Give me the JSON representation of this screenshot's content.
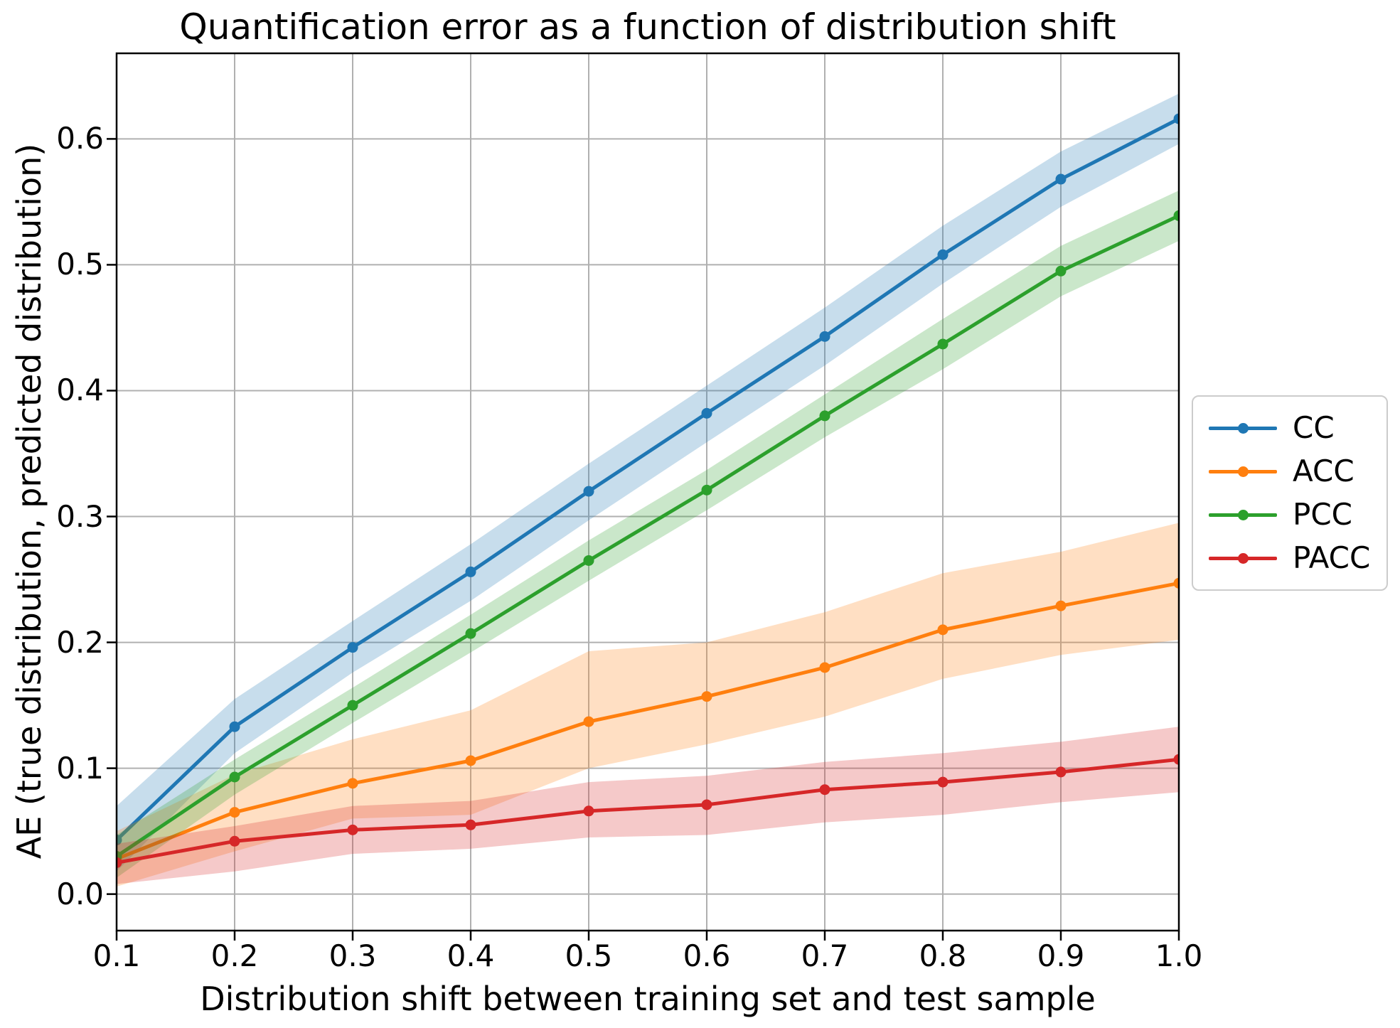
{
  "figure": {
    "title": "Quantification error as a function of distribution shift",
    "xlabel": "Distribution shift between training set and test sample",
    "ylabel": "AE (true distribution, predicted distribution)",
    "background_color": "#ffffff",
    "grid_color": "#b0b0b0",
    "spine_color": "#000000",
    "tick_color": "#000000",
    "legend_border_color": "#cccccc"
  },
  "chart_data": {
    "type": "line",
    "title": "Quantification error as a function of distribution shift",
    "xlabel": "Distribution shift between training set and test sample",
    "ylabel": "AE (true distribution, predicted distribution)",
    "x": [
      0.1,
      0.2,
      0.3,
      0.4,
      0.5,
      0.6,
      0.7,
      0.8,
      0.9,
      1.0
    ],
    "series": [
      {
        "name": "CC",
        "color": "#1f77b4",
        "values": [
          0.043,
          0.133,
          0.196,
          0.256,
          0.32,
          0.382,
          0.443,
          0.508,
          0.568,
          0.616
        ],
        "band_lower": [
          0.018,
          0.112,
          0.176,
          0.233,
          0.297,
          0.359,
          0.42,
          0.485,
          0.546,
          0.596
        ],
        "band_upper": [
          0.07,
          0.155,
          0.217,
          0.278,
          0.342,
          0.404,
          0.466,
          0.531,
          0.59,
          0.636
        ]
      },
      {
        "name": "ACC",
        "color": "#ff7f0e",
        "values": [
          0.028,
          0.065,
          0.088,
          0.106,
          0.137,
          0.157,
          0.18,
          0.21,
          0.229,
          0.247
        ],
        "band_lower": [
          0.006,
          0.034,
          0.06,
          0.063,
          0.1,
          0.119,
          0.141,
          0.171,
          0.19,
          0.202
        ],
        "band_upper": [
          0.05,
          0.095,
          0.123,
          0.146,
          0.193,
          0.2,
          0.224,
          0.255,
          0.272,
          0.295
        ]
      },
      {
        "name": "PCC",
        "color": "#2ca02c",
        "values": [
          0.03,
          0.093,
          0.15,
          0.207,
          0.265,
          0.321,
          0.38,
          0.437,
          0.495,
          0.539
        ],
        "band_lower": [
          0.013,
          0.079,
          0.136,
          0.192,
          0.249,
          0.305,
          0.363,
          0.417,
          0.475,
          0.519
        ],
        "band_upper": [
          0.047,
          0.107,
          0.164,
          0.222,
          0.281,
          0.337,
          0.397,
          0.457,
          0.515,
          0.559
        ]
      },
      {
        "name": "PACC",
        "color": "#d62728",
        "values": [
          0.025,
          0.042,
          0.051,
          0.055,
          0.066,
          0.071,
          0.083,
          0.089,
          0.097,
          0.107
        ],
        "band_lower": [
          0.008,
          0.018,
          0.032,
          0.036,
          0.045,
          0.047,
          0.057,
          0.063,
          0.073,
          0.081
        ],
        "band_upper": [
          0.04,
          0.054,
          0.07,
          0.074,
          0.089,
          0.094,
          0.105,
          0.112,
          0.121,
          0.133
        ]
      }
    ],
    "xtick_labels": [
      "0.1",
      "0.2",
      "0.3",
      "0.4",
      "0.5",
      "0.6",
      "0.7",
      "0.8",
      "0.9",
      "1.0"
    ],
    "ytick_labels": [
      "0.0",
      "0.1",
      "0.2",
      "0.3",
      "0.4",
      "0.5",
      "0.6"
    ],
    "ytick_values": [
      0.0,
      0.1,
      0.2,
      0.3,
      0.4,
      0.5,
      0.6
    ],
    "xlim": [
      0.1,
      1.0
    ],
    "ylim": [
      -0.029,
      0.668
    ],
    "grid": true,
    "band_alpha": 0.25,
    "legend_position": "right-outside",
    "legend_entries": [
      "CC",
      "ACC",
      "PCC",
      "PACC"
    ]
  }
}
